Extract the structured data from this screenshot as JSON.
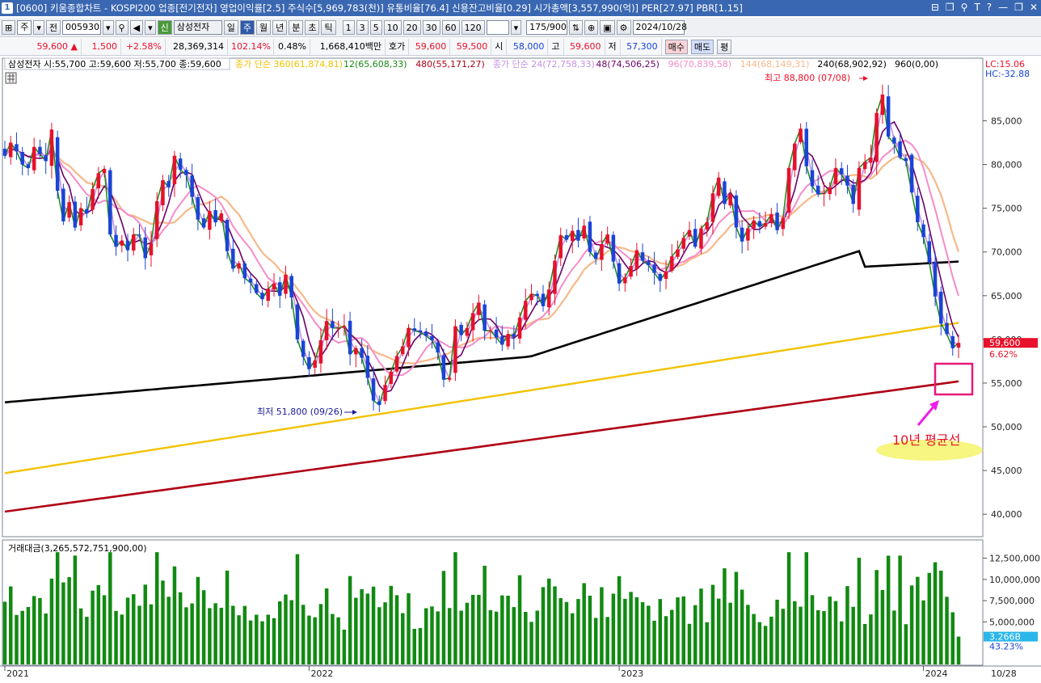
{
  "window": {
    "app_icon": "1",
    "title": "[0600] 키움종합차트 - KOSPI200 업종[전기전자] 영업이익률[2.5] 주식수[5,969,783(천)] 유통비율[76.4] 신용잔고비율[0.29] 시가총액[3,557,990(억)] PER[27.97] PBR[1.15]",
    "buttons": [
      "⊟",
      "❐",
      "⚲",
      "T",
      "?",
      "—",
      "❐",
      "✕"
    ]
  },
  "toolbar": {
    "market": "주",
    "market_sel": "전",
    "code": "005930",
    "badge": "신",
    "name": "삼성전자",
    "periods": [
      "일",
      "주",
      "월",
      "년",
      "분",
      "초",
      "틱"
    ],
    "active_period": "주",
    "intervals": [
      "1",
      "3",
      "5",
      "10",
      "20",
      "30",
      "60",
      "120"
    ],
    "count": "175",
    "count_total": "/900",
    "date": "2024/10/28",
    "buy": "매수",
    "sell": "매도",
    "eval": "평"
  },
  "quote": {
    "price": "59,600",
    "arrow": "▲",
    "change": "1,500",
    "change_pct": "+2.58%",
    "volume": "28,369,314",
    "vol_ratio": "102.14%",
    "turnover_pct": "0.48%",
    "amount": "1,668,410백만",
    "hoga_label": "호가",
    "ask": "59,600",
    "bid": "59,500",
    "open_label": "시",
    "open": "58,000",
    "high_label": "고",
    "high": "59,600",
    "low_label": "저",
    "low": "57,300"
  },
  "legend": {
    "stock": "삼성전자 시:55,700 고:59,600 저:55,700 종:59,600",
    "ma": [
      {
        "label": "종가 단순 360(61,874,81)",
        "color": "#f2c200"
      },
      {
        "label": "12(65,608,33)",
        "color": "#178a17"
      },
      {
        "label": "480(55,171,27)",
        "color": "#b00016"
      },
      {
        "label": "종가 단순 24(72,758,33)",
        "color": "#c490e4"
      },
      {
        "label": "48(74,506,25)",
        "color": "#6a006a"
      },
      {
        "label": "96(70,839,58)",
        "color": "#f58cc8"
      },
      {
        "label": "144(68,149,31)",
        "color": "#f6b98a"
      },
      {
        "label": "240(68,902,92)",
        "color": "#000000"
      },
      {
        "label": "960(0,00)",
        "color": "#000000"
      }
    ]
  },
  "right_info": {
    "lc": "LC:15.06",
    "hc": "HC:-32.88",
    "cur_price": "59,600",
    "cur_pct": "6.62%"
  },
  "annotations": {
    "high": "최고 88,800 (07/08)",
    "low": "최저 51,800 (09/26)",
    "note": "10년 평균선"
  },
  "colors": {
    "up": "#e8102b",
    "down": "#1a44d6",
    "volume": "#118a11",
    "highlight_box": "#e6197a",
    "highlighter": "#f5f56a"
  },
  "chart_data": [
    {
      "type": "candlestick",
      "title": "삼성전자",
      "frequency": "weekly",
      "x_range": [
        "2021-01",
        "2024-10-28"
      ],
      "x_ticks": [
        "2021",
        "2022",
        "2023",
        "2024"
      ],
      "y_ticks": [
        40000,
        45000,
        50000,
        55000,
        60000,
        65000,
        70000,
        75000,
        80000,
        85000
      ],
      "ylim": [
        37800,
        90500
      ],
      "grid": false,
      "extremes": {
        "high": 88800,
        "high_date": "07/08",
        "low": 51800,
        "low_date": "09/26"
      },
      "moving_average_values": {
        "12": 65608,
        "24": 72758,
        "48": 74506,
        "96": 70839,
        "144": 68149,
        "240": 68902,
        "360": 61874,
        "480": 55171
      },
      "closes": [
        81000,
        82500,
        81500,
        80000,
        79600,
        82000,
        81200,
        80400,
        84000,
        77000,
        73500,
        75700,
        72800,
        75000,
        74400,
        77200,
        79000,
        79500,
        72000,
        70600,
        71300,
        70200,
        72000,
        71900,
        69300,
        71000,
        75800,
        78200,
        77400,
        81000,
        79400,
        78800,
        76300,
        73700,
        72800,
        74700,
        73400,
        74400,
        70100,
        68100,
        68700,
        67000,
        66500,
        65300,
        64600,
        65800,
        66400,
        65000,
        67400,
        64800,
        60000,
        58000,
        56600,
        57600,
        59900,
        62100,
        61300,
        61300,
        61500,
        58300,
        59000,
        57900,
        55600,
        53000,
        52500,
        54800,
        56300,
        58100,
        59200,
        61300,
        61000,
        60800,
        60400,
        59900,
        58500,
        55400,
        55600,
        61500,
        60500,
        61300,
        63000,
        64200,
        61000,
        61000,
        60200,
        59400,
        60600,
        60300,
        62500,
        64400,
        65200,
        65000,
        63800,
        65700,
        69000,
        71900,
        71400,
        72400,
        71300,
        73000,
        70000,
        69200,
        70900,
        72000,
        68900,
        66400,
        67100,
        68400,
        70200,
        69000,
        68500,
        67600,
        66700,
        67800,
        69500,
        70300,
        71600,
        72500,
        70600,
        72700,
        73400,
        76700,
        78500,
        75500,
        76600,
        72800,
        71200,
        72700,
        73600,
        72900,
        73300,
        74300,
        72500,
        73900,
        79600,
        82400,
        84100,
        79800,
        77500,
        76600,
        76700,
        77400,
        79600,
        78900,
        77600,
        75500,
        79600,
        80300,
        80800,
        85900,
        88000,
        83200,
        82400,
        80800,
        80400,
        76800,
        73400,
        71700,
        68800,
        64900,
        61800,
        60600,
        59000,
        59600
      ],
      "volume_ylim": [
        0,
        13500000000000
      ],
      "volume_y_ticks": [
        5000000000000,
        7500000000000,
        10000000000000,
        12500000000000
      ],
      "volume_title": "거래대금(3,265,572,751,900,00)",
      "volume_last": "3.266B",
      "volume_last_pct": "43.23%",
      "last_date": "10/28"
    }
  ]
}
